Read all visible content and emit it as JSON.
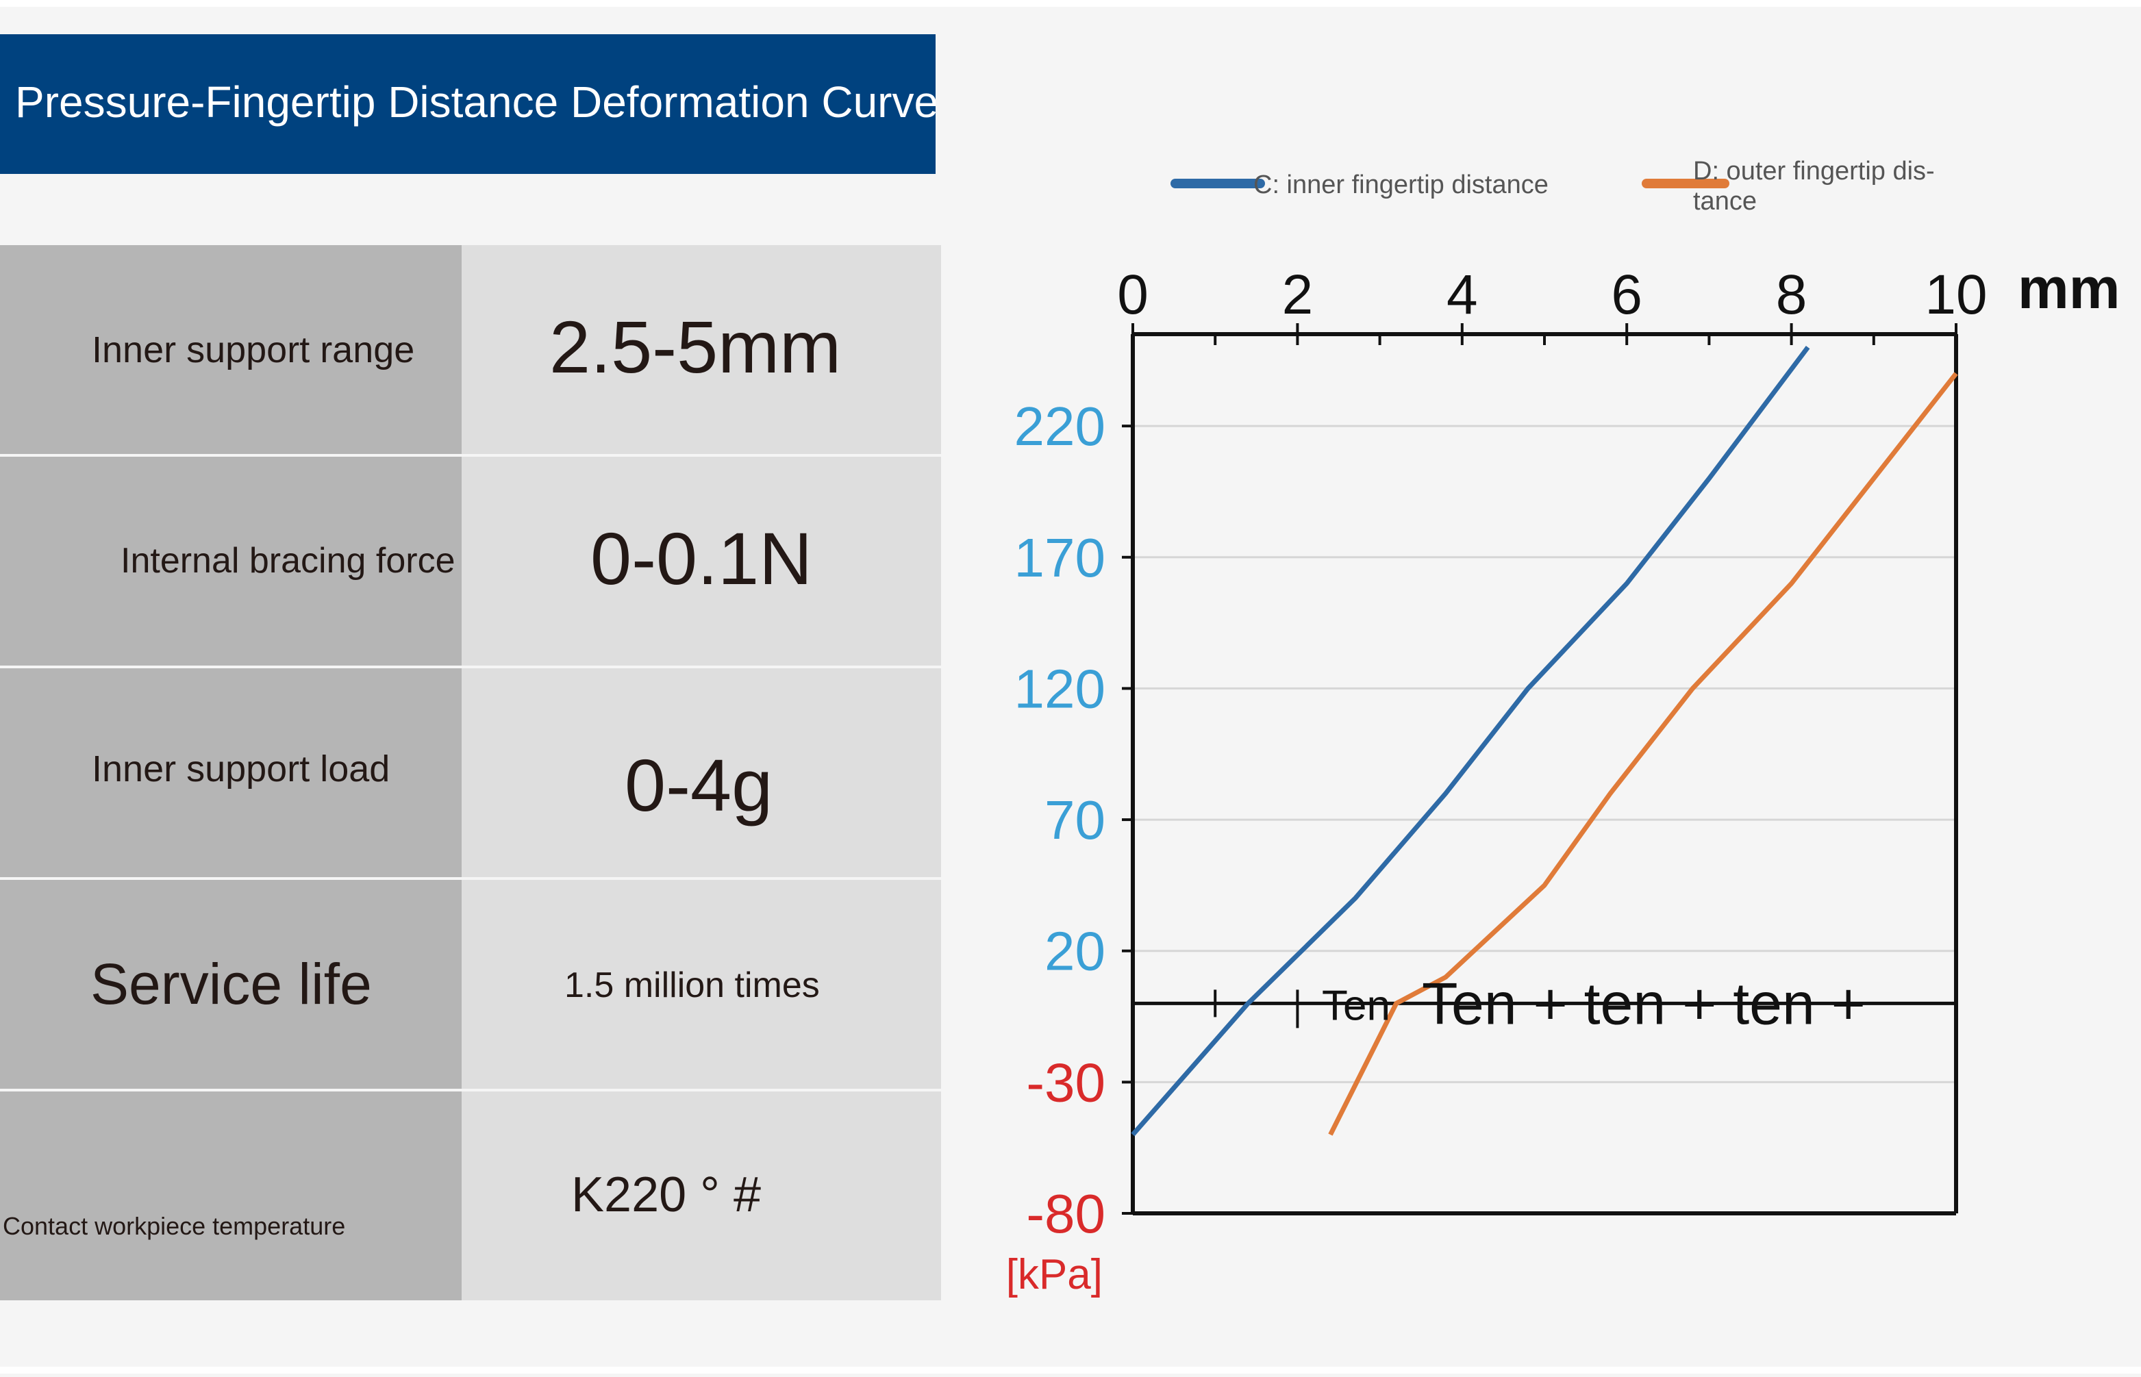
{
  "title": "Pressure-Fingertip Distance Deformation Curve",
  "specs": [
    {
      "label": "Inner support range",
      "value": "2.5-5mm"
    },
    {
      "label": "Internal bracing force",
      "value": "0-0.1N"
    },
    {
      "label": "Inner support load",
      "value": "0-4g"
    },
    {
      "label": "Service life",
      "value": "1.5 million times"
    },
    {
      "label": "Contact workpiece temperature",
      "value": "K220 ° #"
    }
  ],
  "chart_data": {
    "type": "line",
    "x_unit": "mm",
    "y_unit": "[kPa]",
    "xlim": [
      0,
      10
    ],
    "ylim": [
      -80,
      255
    ],
    "x_ticks": [
      "0",
      "2",
      "4",
      "6",
      "8",
      "10"
    ],
    "y_ticks": [
      "220",
      "170",
      "120",
      "70",
      "20",
      "-30",
      "-80"
    ],
    "y_tick_values": [
      220,
      170,
      120,
      70,
      20,
      -30,
      -80
    ],
    "grid": true,
    "legend_position": "top",
    "annotation": "Ten + ten + ten +",
    "annotation_small": "Ten",
    "series": [
      {
        "name": "C: inner fingertip distance",
        "color": "#2e6aa6",
        "x": [
          0,
          1.4,
          2.7,
          3.8,
          4.8,
          6.0,
          7.0,
          8.2
        ],
        "y": [
          -50,
          0,
          40,
          80,
          120,
          160,
          200,
          250
        ]
      },
      {
        "name": "D: outer fingertip distance",
        "color": "#e07b39",
        "x": [
          2.4,
          3.2,
          3.8,
          5.0,
          5.8,
          6.8,
          8.0,
          10.0
        ],
        "y": [
          -50,
          0,
          10,
          45,
          80,
          120,
          160,
          240
        ]
      }
    ]
  },
  "colors": {
    "title_bg": "#00427f",
    "y_tick": "#3a9fd6",
    "y_tick_negative": "#d92a2a",
    "unit_kpa": "#d92a2a"
  }
}
